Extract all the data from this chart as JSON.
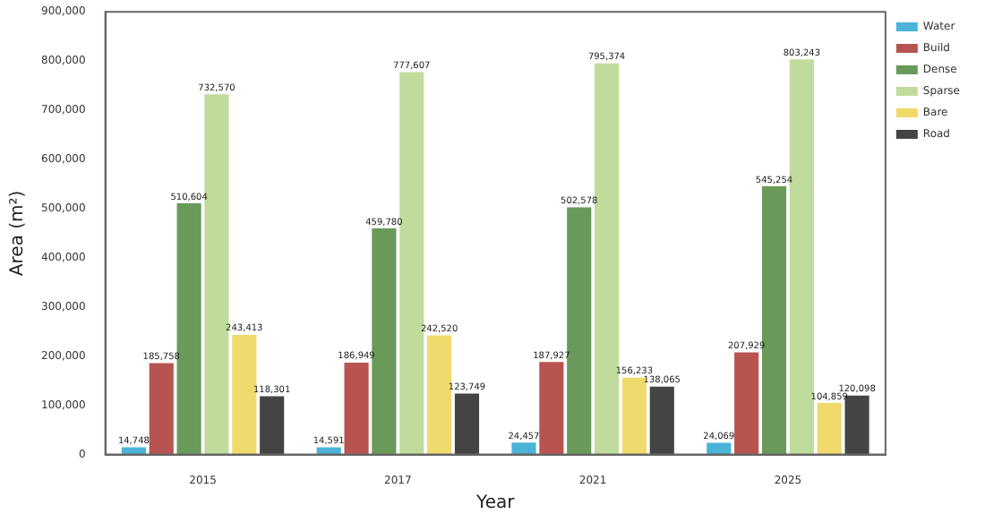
{
  "chart_data": {
    "type": "bar",
    "xlabel": "Year",
    "ylabel": "Area (m²)",
    "categories": [
      "2015",
      "2017",
      "2021",
      "2025"
    ],
    "series": [
      {
        "name": "Water",
        "color": "#4ab3d8",
        "values": [
          14748,
          14591,
          24457,
          24069
        ],
        "value_labels": [
          "14,748",
          "14,591",
          "24,457",
          "24,069"
        ]
      },
      {
        "name": "Build",
        "color": "#b85450",
        "values": [
          185758,
          186949,
          187927,
          207929
        ],
        "value_labels": [
          "185,758",
          "186,949",
          "187,927",
          "207,929"
        ]
      },
      {
        "name": "Dense",
        "color": "#6a9a5a",
        "values": [
          510604,
          459780,
          502578,
          545254
        ],
        "value_labels": [
          "510,604",
          "459,780",
          "502,578",
          "545,254"
        ]
      },
      {
        "name": "Sparse",
        "color": "#c0dc9c",
        "values": [
          732570,
          777607,
          795374,
          803243
        ],
        "value_labels": [
          "732,570",
          "777,607",
          "795,374",
          "803,243"
        ]
      },
      {
        "name": "Bare",
        "color": "#f1da6c",
        "values": [
          243413,
          242520,
          156233,
          104859
        ],
        "value_labels": [
          "243,413",
          "242,520",
          "156,233",
          "104,859"
        ]
      },
      {
        "name": "Road",
        "color": "#444444",
        "values": [
          118301,
          123749,
          138065,
          120098
        ],
        "value_labels": [
          "118,301",
          "123,749",
          "138,065",
          "120,098"
        ]
      }
    ],
    "ylim": [
      0,
      900000
    ],
    "yticks": [
      {
        "value": 0,
        "label": "0"
      },
      {
        "value": 100000,
        "label": "100,000"
      },
      {
        "value": 200000,
        "label": "200,000"
      },
      {
        "value": 300000,
        "label": "300,000"
      },
      {
        "value": 400000,
        "label": "400,000"
      },
      {
        "value": 500000,
        "label": "500,000"
      },
      {
        "value": 600000,
        "label": "600,000"
      },
      {
        "value": 700000,
        "label": "700,000"
      },
      {
        "value": 800000,
        "label": "800,000"
      },
      {
        "value": 900000,
        "label": "900,000"
      }
    ],
    "grid": false,
    "legend": "top right"
  }
}
